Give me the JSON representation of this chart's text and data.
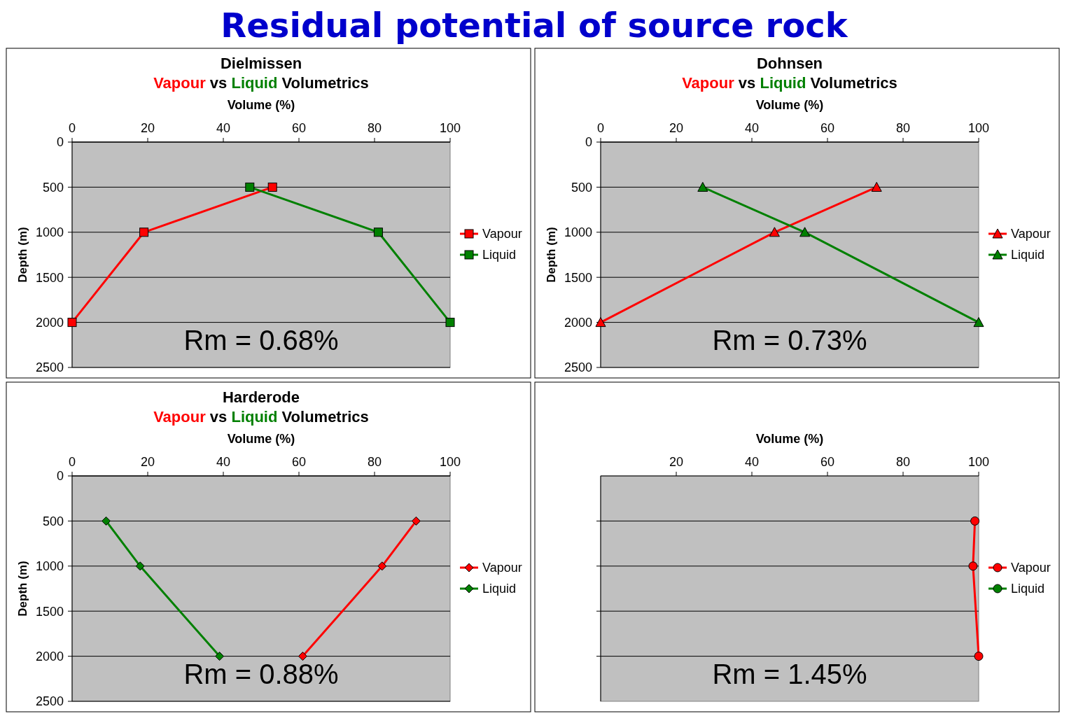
{
  "chart_data": [
    {
      "type": "other",
      "title": "Residual potential of source rock"
    },
    {
      "type": "line",
      "title": "Dielmissen",
      "subtitle": "Vapour vs Liquid Volumetrics",
      "xlabel": "Volume (%)",
      "ylabel": "Depth (m)",
      "xlim": [
        0,
        100
      ],
      "xticks": [
        0,
        20,
        40,
        60,
        80,
        100
      ],
      "ylim": [
        2500,
        0
      ],
      "yticks": [
        0,
        500,
        1000,
        1500,
        2000,
        2500
      ],
      "grid": "y",
      "marker": "square",
      "legend": "right",
      "annotations": [
        "Rm = 0.68%"
      ],
      "series": [
        {
          "name": "Vapour",
          "color": "#ff0000",
          "x": [
            53,
            19,
            0
          ],
          "values": [
            500,
            1000,
            2000
          ]
        },
        {
          "name": "Liquid",
          "color": "#008000",
          "x": [
            47,
            81,
            100
          ],
          "values": [
            500,
            1000,
            2000
          ]
        }
      ]
    },
    {
      "type": "line",
      "title": "Dohnsen",
      "subtitle": "Vapour vs Liquid Volumetrics",
      "xlabel": "Volume (%)",
      "ylabel": "Depth (m)",
      "xlim": [
        0,
        100
      ],
      "xticks": [
        0,
        20,
        40,
        60,
        80,
        100
      ],
      "ylim": [
        2500,
        0
      ],
      "yticks": [
        0,
        500,
        1000,
        1500,
        2000,
        2500
      ],
      "grid": "y",
      "marker": "triangle",
      "legend": "right",
      "annotations": [
        "Rm = 0.73%"
      ],
      "series": [
        {
          "name": "Vapour",
          "color": "#ff0000",
          "x": [
            73,
            46,
            0
          ],
          "values": [
            500,
            1000,
            2000
          ]
        },
        {
          "name": "Liquid",
          "color": "#008000",
          "x": [
            27,
            54,
            100
          ],
          "values": [
            500,
            1000,
            2000
          ]
        }
      ]
    },
    {
      "type": "line",
      "title": "Harderode",
      "subtitle": "Vapour vs Liquid Volumetrics",
      "xlabel": "Volume (%)",
      "ylabel": "Depth (m)",
      "xlim": [
        0,
        100
      ],
      "xticks": [
        0,
        20,
        40,
        60,
        80,
        100
      ],
      "ylim": [
        2500,
        0
      ],
      "yticks": [
        0,
        500,
        1000,
        1500,
        2000,
        2500
      ],
      "grid": "y",
      "marker": "diamond",
      "legend": "right",
      "annotations": [
        "Rm = 0.88%"
      ],
      "series": [
        {
          "name": "Vapour",
          "color": "#ff0000",
          "x": [
            91,
            82,
            61
          ],
          "values": [
            500,
            1000,
            2000
          ]
        },
        {
          "name": "Liquid",
          "color": "#008000",
          "x": [
            9,
            18,
            39
          ],
          "values": [
            500,
            1000,
            2000
          ]
        }
      ]
    },
    {
      "type": "line",
      "xlabel": "Volume (%)",
      "xlim": [
        0,
        100
      ],
      "xticks": [
        20,
        40,
        60,
        80,
        100
      ],
      "ylim": [
        2500,
        0
      ],
      "yticks": [
        500,
        1000,
        1500,
        2000
      ],
      "tick_labels": "x",
      "grid": "y",
      "marker": "circle",
      "legend": "right",
      "annotations": [
        "Rm = 1.45%"
      ],
      "series": [
        {
          "name": "Vapour",
          "color": "#ff0000",
          "x": [
            99,
            98.5,
            100
          ],
          "values": [
            500,
            1000,
            2000
          ]
        },
        {
          "name": "Liquid",
          "color": "#008000",
          "x": [
            null,
            null,
            null
          ],
          "values": [
            null,
            null,
            null
          ]
        }
      ]
    }
  ]
}
